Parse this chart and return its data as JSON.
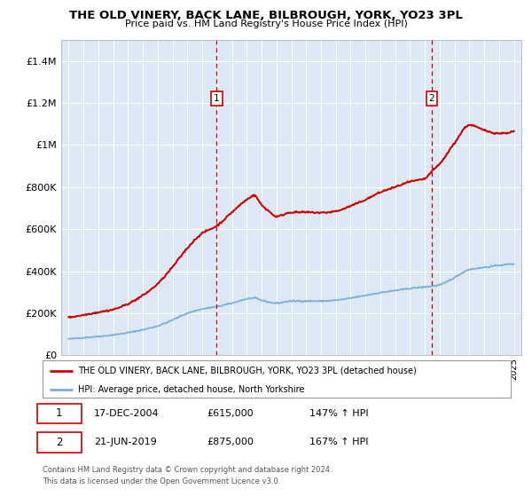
{
  "title": "THE OLD VINERY, BACK LANE, BILBROUGH, YORK, YO23 3PL",
  "subtitle": "Price paid vs. HM Land Registry's House Price Index (HPI)",
  "bg_color": "#dce9f5",
  "red_line_color": "#cc0000",
  "blue_line_color": "#7bafd4",
  "vline_color": "#cc0000",
  "sale1_date_num": 2004.96,
  "sale1_price": 615000,
  "sale2_date_num": 2019.47,
  "sale2_price": 875000,
  "legend_entry1": "THE OLD VINERY, BACK LANE, BILBROUGH, YORK, YO23 3PL (detached house)",
  "legend_entry2": "HPI: Average price, detached house, North Yorkshire",
  "table_row1": [
    "1",
    "17-DEC-2004",
    "£615,000",
    "147% ↑ HPI"
  ],
  "table_row2": [
    "2",
    "21-JUN-2019",
    "£875,000",
    "167% ↑ HPI"
  ],
  "footer": "Contains HM Land Registry data © Crown copyright and database right 2024.\nThis data is licensed under the Open Government Licence v3.0.",
  "ylim_max": 1500000,
  "xlim_start": 1994.5,
  "xlim_end": 2025.5,
  "hpi_base_values": [
    [
      1995.0,
      78000
    ],
    [
      1996.0,
      84000
    ],
    [
      1997.0,
      90000
    ],
    [
      1998.0,
      97000
    ],
    [
      1999.0,
      108000
    ],
    [
      2000.0,
      122000
    ],
    [
      2001.0,
      140000
    ],
    [
      2002.0,
      168000
    ],
    [
      2003.0,
      200000
    ],
    [
      2004.0,
      220000
    ],
    [
      2005.0,
      232000
    ],
    [
      2006.0,
      248000
    ],
    [
      2007.0,
      268000
    ],
    [
      2007.5,
      272000
    ],
    [
      2008.0,
      262000
    ],
    [
      2009.0,
      248000
    ],
    [
      2010.0,
      258000
    ],
    [
      2011.0,
      258000
    ],
    [
      2012.0,
      258000
    ],
    [
      2013.0,
      262000
    ],
    [
      2014.0,
      272000
    ],
    [
      2015.0,
      285000
    ],
    [
      2016.0,
      298000
    ],
    [
      2017.0,
      308000
    ],
    [
      2018.0,
      318000
    ],
    [
      2019.0,
      325000
    ],
    [
      2020.0,
      335000
    ],
    [
      2021.0,
      370000
    ],
    [
      2022.0,
      408000
    ],
    [
      2023.0,
      418000
    ],
    [
      2024.0,
      428000
    ],
    [
      2025.0,
      435000
    ]
  ],
  "red_base_values": [
    [
      1995.0,
      180000
    ],
    [
      1996.0,
      192000
    ],
    [
      1997.0,
      205000
    ],
    [
      1998.0,
      218000
    ],
    [
      1999.0,
      245000
    ],
    [
      2000.0,
      285000
    ],
    [
      2001.0,
      340000
    ],
    [
      2002.0,
      420000
    ],
    [
      2003.0,
      510000
    ],
    [
      2004.0,
      580000
    ],
    [
      2004.96,
      615000
    ],
    [
      2006.0,
      680000
    ],
    [
      2007.0,
      740000
    ],
    [
      2007.5,
      760000
    ],
    [
      2008.0,
      715000
    ],
    [
      2008.5,
      685000
    ],
    [
      2009.0,
      660000
    ],
    [
      2010.0,
      680000
    ],
    [
      2011.0,
      680000
    ],
    [
      2012.0,
      678000
    ],
    [
      2013.0,
      685000
    ],
    [
      2014.0,
      710000
    ],
    [
      2015.0,
      740000
    ],
    [
      2016.0,
      775000
    ],
    [
      2017.0,
      800000
    ],
    [
      2018.0,
      825000
    ],
    [
      2019.0,
      840000
    ],
    [
      2019.47,
      875000
    ],
    [
      2020.0,
      910000
    ],
    [
      2021.0,
      1010000
    ],
    [
      2022.0,
      1095000
    ],
    [
      2023.0,
      1070000
    ],
    [
      2024.0,
      1055000
    ],
    [
      2025.0,
      1065000
    ]
  ]
}
